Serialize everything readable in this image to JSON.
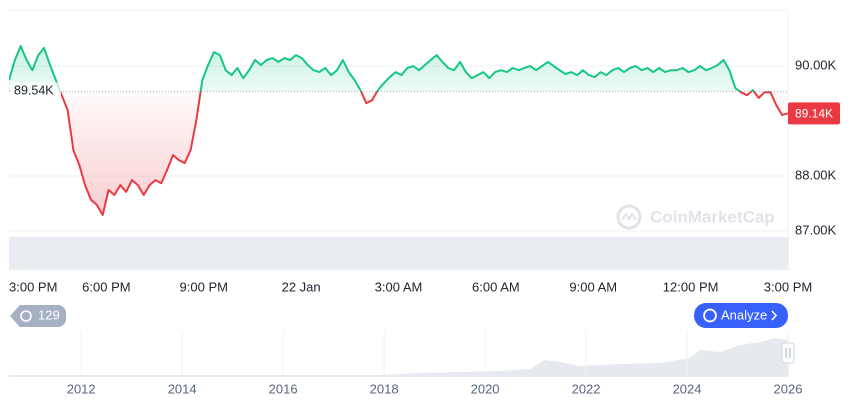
{
  "chart_data": {
    "type": "line",
    "x_labels": [
      "3:00 PM",
      "6:00 PM",
      "9:00 PM",
      "22 Jan",
      "3:00 AM",
      "6:00 AM",
      "9:00 AM",
      "12:00 PM",
      "3:00 PM"
    ],
    "values": [
      89745,
      90110,
      90365,
      90110,
      89925,
      90200,
      90330,
      90020,
      89745,
      89470,
      89200,
      88470,
      88200,
      87835,
      87565,
      87475,
      87290,
      87745,
      87655,
      87835,
      87710,
      87925,
      87835,
      87655,
      87835,
      87925,
      87870,
      88110,
      88380,
      88290,
      88235,
      88470,
      89020,
      89745,
      90020,
      90255,
      90200,
      89925,
      89835,
      89965,
      89780,
      89925,
      90110,
      90020,
      90110,
      90145,
      90075,
      90145,
      90110,
      90200,
      90145,
      90020,
      89925,
      89890,
      89965,
      89835,
      89925,
      90110,
      89890,
      89745,
      89565,
      89325,
      89380,
      89565,
      89690,
      89800,
      89890,
      89835,
      89965,
      90000,
      89925,
      90020,
      90110,
      90200,
      90075,
      89965,
      89925,
      90075,
      89890,
      89780,
      89835,
      89890,
      89780,
      89890,
      89925,
      89890,
      89965,
      89925,
      89965,
      90000,
      89925,
      90000,
      90075,
      90000,
      89925,
      89855,
      89890,
      89835,
      89925,
      89835,
      89800,
      89890,
      89835,
      89925,
      89965,
      89890,
      89965,
      90000,
      89925,
      89965,
      89890,
      89965,
      89890,
      89925,
      89925,
      89965,
      89890,
      89925,
      90000,
      89925,
      89965,
      90020,
      90110,
      89925,
      89600,
      89525,
      89470,
      89565,
      89420,
      89525,
      89525,
      89290,
      89110,
      89140
    ],
    "baseline": {
      "value": 89540,
      "label": "89.54K"
    },
    "last_value_label": "89.14K",
    "up_color": "#16c784",
    "down_color": "#ea3943",
    "ylim": [
      86290,
      91020
    ],
    "yticks": [
      {
        "value": 90000,
        "label": "90.00K"
      },
      {
        "value": 88000,
        "label": "88.00K"
      },
      {
        "value": 87000,
        "label": "87.00K"
      }
    ],
    "grid": true,
    "watermark": "CoinMarketCap",
    "navigator": {
      "xlim": [
        2010.57,
        2026
      ],
      "xticks": [
        2012,
        2014,
        2016,
        2018,
        2020,
        2022,
        2024,
        2026
      ]
    }
  },
  "badge": "129",
  "button": "Analyze"
}
